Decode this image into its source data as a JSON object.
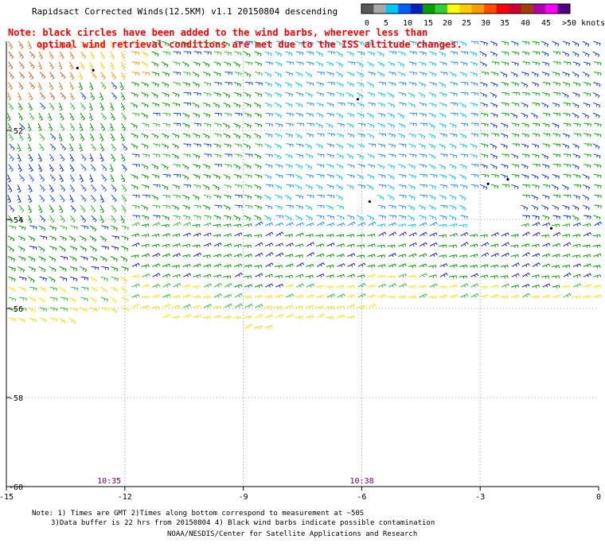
{
  "title": "Rapidsact Corrected Winds(12.5KM) v1.1 20150804 descending",
  "note_lines": [
    "Note: black circles have been added to the wind barbs, wherever less than",
    "optimal wind retrieval conditions are met due to the ISS altitude changes."
  ],
  "colorbar": {
    "unit": "knots",
    "labels": [
      "0",
      "5",
      "10",
      "15",
      "20",
      "25",
      "30",
      "35",
      "40",
      "45",
      ">50 knots"
    ],
    "colors": [
      "#585858",
      "#a8a8a8",
      "#00c8ff",
      "#0060ff",
      "#0020c0",
      "#00a000",
      "#30d030",
      "#ffff00",
      "#ffcc00",
      "#ff9900",
      "#ff5000",
      "#ff0000",
      "#cc0033",
      "#a04000",
      "#b000b0",
      "#ff00ff",
      "#500080"
    ]
  },
  "time_labels": [
    "10:35",
    "10:38"
  ],
  "footer": {
    "line1": "Note: 1) Times are GMT 2)Times along bottom correspond to measurement at ~50S",
    "line2": "3)Data buffer is 22 hrs from 20150804 4) Black wind barbs indicate possible contamination",
    "line3": "NOAA/NESDIS/Center for Satellite Applications and Research"
  },
  "chart_data": {
    "type": "wind_barbs",
    "xlim": [
      -15,
      0
    ],
    "ylim": [
      -60,
      -50
    ],
    "xticks": [
      -15,
      -12,
      -9,
      -6,
      -3,
      0
    ],
    "xtick_labels": [
      "-15",
      "-12",
      "-9",
      "-6",
      "-3",
      "0"
    ],
    "yticks": [
      -52,
      -54,
      -56,
      -58,
      -60
    ],
    "ytick_labels": [
      "-52",
      "-54",
      "-56",
      "-58",
      "-60"
    ],
    "grid": true,
    "wind_speed_bands": [
      {
        "name": "yellow/orange strong winds",
        "speed_kt": [
          25,
          40
        ],
        "region": "upper-left corner"
      },
      {
        "name": "green moderate winds",
        "speed_kt": [
          15,
          20
        ],
        "region": "central band"
      },
      {
        "name": "blue/cyan light winds",
        "speed_kt": [
          5,
          15
        ],
        "region": "center to east"
      },
      {
        "name": "yellow southern edge",
        "speed_kt": [
          20,
          25
        ],
        "region": "southern swath edge near -56"
      }
    ],
    "swath": {
      "south_edge_lat": -56.3,
      "lon_range": [
        -15,
        0
      ]
    }
  }
}
